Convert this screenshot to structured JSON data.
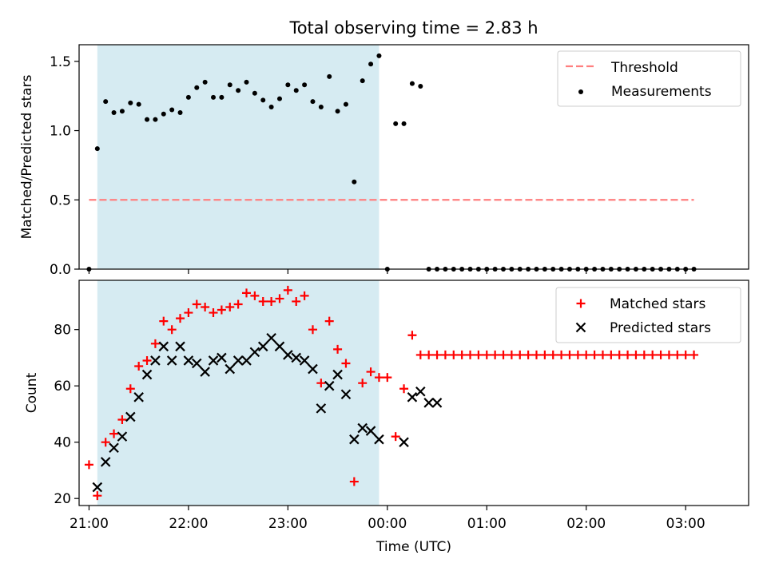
{
  "chart_data": {
    "title": "Total observing time = 2.83 h",
    "xlabel": "Time (UTC)",
    "x_tick_labels": [
      "21:00",
      "22:00",
      "23:00",
      "00:00",
      "01:00",
      "02:00",
      "03:00"
    ],
    "shaded_span": [
      "21:05",
      "23:55"
    ],
    "colors": {
      "shade": "#add8e6",
      "threshold": "#ff7f7f",
      "measurements": "#000000",
      "matched": "#ff0000",
      "predicted": "#000000"
    },
    "panels": [
      {
        "type": "scatter",
        "ylabel": "Matched/Predicted stars",
        "ylim": [
          0,
          1.62
        ],
        "y_ticks": [
          0.0,
          0.5,
          1.0,
          1.5
        ],
        "y_tick_labels": [
          "0.0",
          "0.5",
          "1.0",
          "1.5"
        ],
        "legend_position": "upper right",
        "series": [
          {
            "name": "Threshold",
            "style": "dashed-line",
            "x": [
              "21:00",
              "03:05"
            ],
            "y": [
              0.5,
              0.5
            ]
          },
          {
            "name": "Measurements",
            "style": "dot",
            "x": [
              "21:00",
              "21:05",
              "21:10",
              "21:15",
              "21:20",
              "21:25",
              "21:30",
              "21:35",
              "21:40",
              "21:45",
              "21:50",
              "21:55",
              "22:00",
              "22:05",
              "22:10",
              "22:15",
              "22:20",
              "22:25",
              "22:30",
              "22:35",
              "22:40",
              "22:45",
              "22:50",
              "22:55",
              "23:00",
              "23:05",
              "23:10",
              "23:15",
              "23:20",
              "23:25",
              "23:30",
              "23:35",
              "23:40",
              "23:45",
              "23:50",
              "23:55",
              "00:00",
              "00:05",
              "00:10",
              "00:15",
              "00:20",
              "00:25",
              "00:30",
              "00:35",
              "00:40",
              "00:45",
              "00:50",
              "00:55",
              "01:00",
              "01:05",
              "01:10",
              "01:15",
              "01:20",
              "01:25",
              "01:30",
              "01:35",
              "01:40",
              "01:45",
              "01:50",
              "01:55",
              "02:00",
              "02:05",
              "02:10",
              "02:15",
              "02:20",
              "02:25",
              "02:30",
              "02:35",
              "02:40",
              "02:45",
              "02:50",
              "02:55",
              "03:00",
              "03:05"
            ],
            "y": [
              0.0,
              0.87,
              1.21,
              1.13,
              1.14,
              1.2,
              1.19,
              1.08,
              1.08,
              1.12,
              1.15,
              1.13,
              1.24,
              1.31,
              1.35,
              1.24,
              1.24,
              1.33,
              1.29,
              1.35,
              1.27,
              1.22,
              1.17,
              1.23,
              1.33,
              1.29,
              1.33,
              1.21,
              1.17,
              1.39,
              1.14,
              1.19,
              0.63,
              1.36,
              1.48,
              1.54,
              0.0,
              1.05,
              1.05,
              1.34,
              1.32,
              0.0,
              0.0,
              0.0,
              0.0,
              0.0,
              0.0,
              0.0,
              0.0,
              0.0,
              0.0,
              0.0,
              0.0,
              0.0,
              0.0,
              0.0,
              0.0,
              0.0,
              0.0,
              0.0,
              0.0,
              0.0,
              0.0,
              0.0,
              0.0,
              0.0,
              0.0,
              0.0,
              0.0,
              0.0,
              0.0,
              0.0,
              0.0,
              0.0
            ]
          }
        ]
      },
      {
        "type": "scatter",
        "ylabel": "Count",
        "ylim": [
          17.5,
          97.5
        ],
        "y_ticks": [
          20,
          40,
          60,
          80
        ],
        "y_tick_labels": [
          "20",
          "40",
          "60",
          "80"
        ],
        "legend_position": "upper right",
        "series": [
          {
            "name": "Matched stars",
            "style": "plus",
            "x": [
              "21:00",
              "21:05",
              "21:10",
              "21:15",
              "21:20",
              "21:25",
              "21:30",
              "21:35",
              "21:40",
              "21:45",
              "21:50",
              "21:55",
              "22:00",
              "22:05",
              "22:10",
              "22:15",
              "22:20",
              "22:25",
              "22:30",
              "22:35",
              "22:40",
              "22:45",
              "22:50",
              "22:55",
              "23:00",
              "23:05",
              "23:10",
              "23:15",
              "23:20",
              "23:25",
              "23:30",
              "23:35",
              "23:40",
              "23:45",
              "23:50",
              "23:55",
              "00:00",
              "00:05",
              "00:10",
              "00:15",
              "00:20",
              "00:25",
              "00:30",
              "00:35",
              "00:40",
              "00:45",
              "00:50",
              "00:55",
              "01:00",
              "01:05",
              "01:10",
              "01:15",
              "01:20",
              "01:25",
              "01:30",
              "01:35",
              "01:40",
              "01:45",
              "01:50",
              "01:55",
              "02:00",
              "02:05",
              "02:10",
              "02:15",
              "02:20",
              "02:25",
              "02:30",
              "02:35",
              "02:40",
              "02:45",
              "02:50",
              "02:55",
              "03:00",
              "03:05"
            ],
            "y": [
              32,
              21,
              40,
              43,
              48,
              59,
              67,
              69,
              75,
              83,
              80,
              84,
              86,
              89,
              88,
              86,
              87,
              88,
              89,
              93,
              92,
              90,
              90,
              91,
              94,
              90,
              92,
              80,
              61,
              83,
              73,
              68,
              26,
              61,
              65,
              63,
              63,
              42,
              59,
              78,
              71,
              71,
              71,
              71,
              71,
              71,
              71,
              71,
              71,
              71,
              71,
              71,
              71,
              71,
              71,
              71,
              71,
              71,
              71,
              71,
              71,
              71,
              71,
              71,
              71,
              71,
              71,
              71,
              71,
              71,
              71,
              71,
              71,
              71
            ]
          },
          {
            "name": "Predicted stars",
            "style": "x",
            "x": [
              "21:05",
              "21:10",
              "21:15",
              "21:20",
              "21:25",
              "21:30",
              "21:35",
              "21:40",
              "21:45",
              "21:50",
              "21:55",
              "22:00",
              "22:05",
              "22:10",
              "22:15",
              "22:20",
              "22:25",
              "22:30",
              "22:35",
              "22:40",
              "22:45",
              "22:50",
              "22:55",
              "23:00",
              "23:05",
              "23:10",
              "23:15",
              "23:20",
              "23:25",
              "23:30",
              "23:35",
              "23:40",
              "23:45",
              "23:50",
              "23:55",
              "00:10",
              "00:15",
              "00:20",
              "00:25",
              "00:30"
            ],
            "y": [
              24,
              33,
              38,
              42,
              49,
              56,
              64,
              69,
              74,
              69,
              74,
              69,
              68,
              65,
              69,
              70,
              66,
              69,
              69,
              72,
              74,
              77,
              74,
              71,
              70,
              69,
              66,
              52,
              60,
              64,
              57,
              41,
              45,
              44,
              41,
              40,
              56,
              58,
              54,
              54
            ]
          }
        ]
      }
    ]
  }
}
